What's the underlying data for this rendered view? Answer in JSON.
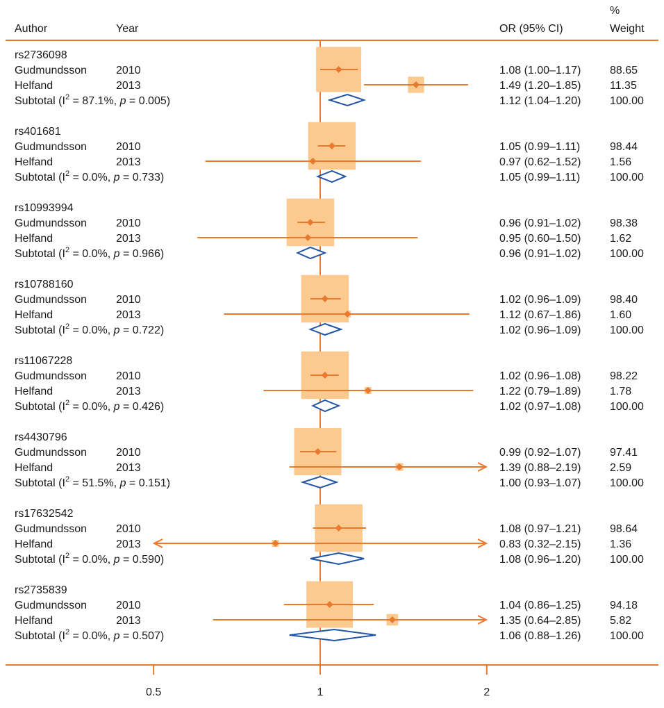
{
  "chart_data": {
    "type": "forest",
    "header": {
      "author": "Author",
      "year": "Year",
      "or_ci": "OR (95% CI)",
      "weight_top": "%",
      "weight_bottom": "Weight"
    },
    "x_ticks": [
      {
        "value": 0.5,
        "label": "0.5"
      },
      {
        "value": 1,
        "label": "1"
      },
      {
        "value": 2,
        "label": "2"
      }
    ],
    "x_scale": "log",
    "null_line": 1,
    "groups": [
      {
        "snp": "rs2736098",
        "studies": [
          {
            "author": "Gudmundsson",
            "year": "2010",
            "or": 1.08,
            "lo": 1.0,
            "hi": 1.17,
            "or_text": "1.08 (1.00–1.17)",
            "weight": "88.65"
          },
          {
            "author": "Helfand",
            "year": "2013",
            "or": 1.49,
            "lo": 1.2,
            "hi": 1.85,
            "or_text": "1.49 (1.20–1.85)",
            "weight": "11.35"
          }
        ],
        "subtotal": {
          "label": "Subtotal",
          "i2": "87.1%",
          "p": "0.005",
          "or": 1.12,
          "lo": 1.04,
          "hi": 1.2,
          "or_text": "1.12 (1.04–1.20)",
          "weight": "100.00"
        }
      },
      {
        "snp": "rs401681",
        "studies": [
          {
            "author": "Gudmundsson",
            "year": "2010",
            "or": 1.05,
            "lo": 0.99,
            "hi": 1.11,
            "or_text": "1.05 (0.99–1.11)",
            "weight": "98.44"
          },
          {
            "author": "Helfand",
            "year": "2013",
            "or": 0.97,
            "lo": 0.62,
            "hi": 1.52,
            "or_text": "0.97 (0.62–1.52)",
            "weight": "1.56"
          }
        ],
        "subtotal": {
          "label": "Subtotal",
          "i2": "0.0%",
          "p": "0.733",
          "or": 1.05,
          "lo": 0.99,
          "hi": 1.11,
          "or_text": "1.05 (0.99–1.11)",
          "weight": "100.00"
        }
      },
      {
        "snp": "rs10993994",
        "studies": [
          {
            "author": "Gudmundsson",
            "year": "2010",
            "or": 0.96,
            "lo": 0.91,
            "hi": 1.02,
            "or_text": "0.96 (0.91–1.02)",
            "weight": "98.38"
          },
          {
            "author": "Helfand",
            "year": "2013",
            "or": 0.95,
            "lo": 0.6,
            "hi": 1.5,
            "or_text": "0.95 (0.60–1.50)",
            "weight": "1.62"
          }
        ],
        "subtotal": {
          "label": "Subtotal",
          "i2": "0.0%",
          "p": "0.966",
          "or": 0.96,
          "lo": 0.91,
          "hi": 1.02,
          "or_text": "0.96 (0.91–1.02)",
          "weight": "100.00"
        }
      },
      {
        "snp": "rs10788160",
        "studies": [
          {
            "author": "Gudmundsson",
            "year": "2010",
            "or": 1.02,
            "lo": 0.96,
            "hi": 1.09,
            "or_text": "1.02 (0.96–1.09)",
            "weight": "98.40"
          },
          {
            "author": "Helfand",
            "year": "2013",
            "or": 1.12,
            "lo": 0.67,
            "hi": 1.86,
            "or_text": "1.12 (0.67–1.86)",
            "weight": "1.60"
          }
        ],
        "subtotal": {
          "label": "Subtotal",
          "i2": "0.0%",
          "p": "0.722",
          "or": 1.02,
          "lo": 0.96,
          "hi": 1.09,
          "or_text": "1.02 (0.96–1.09)",
          "weight": "100.00"
        }
      },
      {
        "snp": "rs11067228",
        "studies": [
          {
            "author": "Gudmundsson",
            "year": "2010",
            "or": 1.02,
            "lo": 0.96,
            "hi": 1.08,
            "or_text": "1.02 (0.96–1.08)",
            "weight": "98.22"
          },
          {
            "author": "Helfand",
            "year": "2013",
            "or": 1.22,
            "lo": 0.79,
            "hi": 1.89,
            "or_text": "1.22 (0.79–1.89)",
            "weight": "1.78"
          }
        ],
        "subtotal": {
          "label": "Subtotal",
          "i2": "0.0%",
          "p": "0.426",
          "or": 1.02,
          "lo": 0.97,
          "hi": 1.08,
          "or_text": "1.02 (0.97–1.08)",
          "weight": "100.00"
        }
      },
      {
        "snp": "rs4430796",
        "studies": [
          {
            "author": "Gudmundsson",
            "year": "2010",
            "or": 0.99,
            "lo": 0.92,
            "hi": 1.07,
            "or_text": "0.99 (0.92–1.07)",
            "weight": "97.41"
          },
          {
            "author": "Helfand",
            "year": "2013",
            "or": 1.39,
            "lo": 0.88,
            "hi": 2.19,
            "or_text": "1.39 (0.88–2.19)",
            "weight": "2.59"
          }
        ],
        "subtotal": {
          "label": "Subtotal",
          "i2": "51.5%",
          "p": "0.151",
          "or": 1.0,
          "lo": 0.93,
          "hi": 1.07,
          "or_text": "1.00 (0.93–1.07)",
          "weight": "100.00"
        }
      },
      {
        "snp": "rs17632542",
        "studies": [
          {
            "author": "Gudmundsson",
            "year": "2010",
            "or": 1.08,
            "lo": 0.97,
            "hi": 1.21,
            "or_text": "1.08 (0.97–1.21)",
            "weight": "98.64"
          },
          {
            "author": "Helfand",
            "year": "2013",
            "or": 0.83,
            "lo": 0.32,
            "hi": 2.15,
            "or_text": "0.83 (0.32–2.15)",
            "weight": "1.36"
          }
        ],
        "subtotal": {
          "label": "Subtotal",
          "i2": "0.0%",
          "p": "0.590",
          "or": 1.08,
          "lo": 0.96,
          "hi": 1.2,
          "or_text": "1.08 (0.96–1.20)",
          "weight": "100.00"
        }
      },
      {
        "snp": "rs2735839",
        "studies": [
          {
            "author": "Gudmundsson",
            "year": "2010",
            "or": 1.04,
            "lo": 0.86,
            "hi": 1.25,
            "or_text": "1.04 (0.86–1.25)",
            "weight": "94.18"
          },
          {
            "author": "Helfand",
            "year": "2013",
            "or": 1.35,
            "lo": 0.64,
            "hi": 2.85,
            "or_text": "1.35 (0.64–2.85)",
            "weight": "5.82"
          }
        ],
        "subtotal": {
          "label": "Subtotal",
          "i2": "0.0%",
          "p": "0.507",
          "or": 1.06,
          "lo": 0.88,
          "hi": 1.26,
          "or_text": "1.06 (0.88–1.26)",
          "weight": "100.00"
        }
      }
    ],
    "colors": {
      "axis": "#e8792e",
      "estimate": "#e8792e",
      "box": "#fcc98f",
      "diamond": "#2255a4"
    }
  }
}
